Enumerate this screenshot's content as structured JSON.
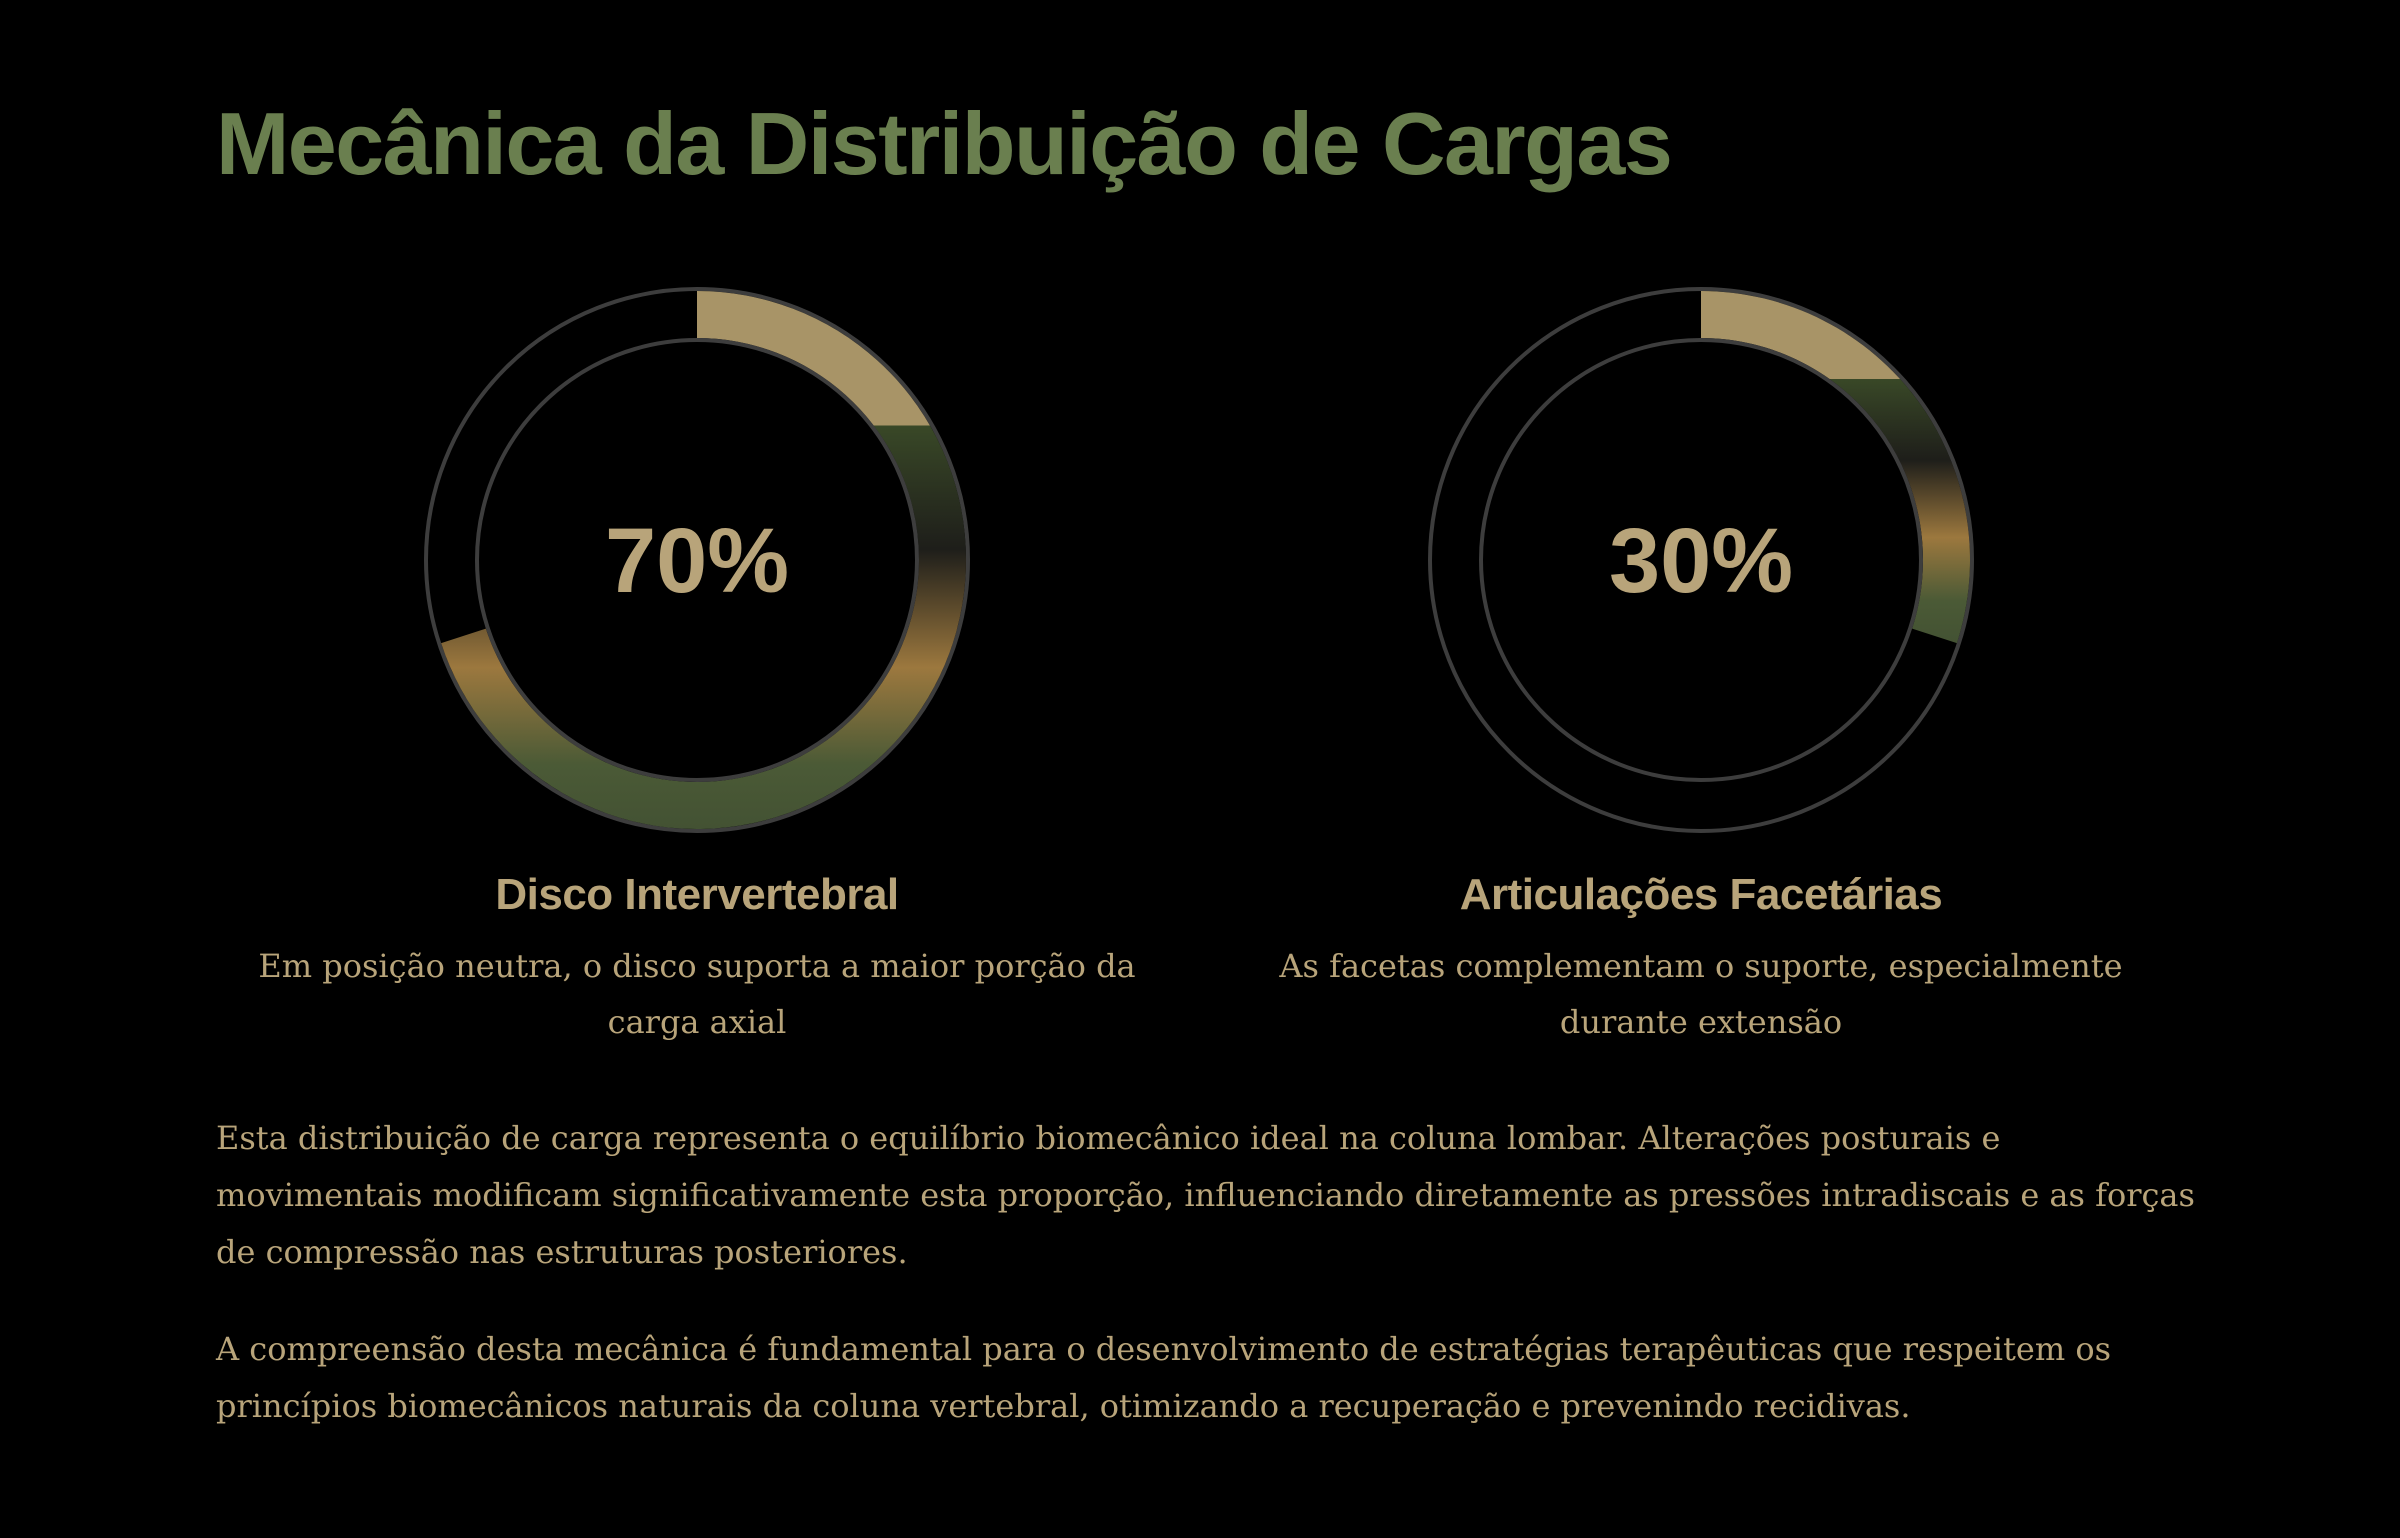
{
  "title": "Mecânica da Distribuição de Cargas",
  "colors": {
    "title": "#6a7f4f",
    "text": "#b8a47a",
    "track": "#3d3d3d",
    "arc_top": "#a89467",
    "arc_green": "#435233",
    "arc_orange": "#9c783e"
  },
  "chart_data": [
    {
      "type": "pie",
      "variant": "donut",
      "value": 70,
      "max": 100,
      "center_label": "70%",
      "label": "Disco Intervertebral",
      "description": "Em posição neutra, o disco suporta a maior porção da carga axial"
    },
    {
      "type": "pie",
      "variant": "donut",
      "value": 30,
      "max": 100,
      "center_label": "30%",
      "label": "Articulações Facetárias",
      "description": "As facetas complementam o suporte, especialmente durante extensão"
    }
  ],
  "paragraphs": [
    "Esta distribuição de carga representa o equilíbrio biomecânico ideal na coluna lombar. Alterações posturais e movimentais modificam significativamente esta proporção, influenciando diretamente as pressões intradiscais e as forças de compressão nas estruturas posteriores.",
    "A compreensão desta mecânica é fundamental para o desenvolvimento de estratégias terapêuticas que respeitem os princípios biomecânicos naturais da coluna vertebral, otimizando a recuperação e prevenindo recidivas."
  ]
}
